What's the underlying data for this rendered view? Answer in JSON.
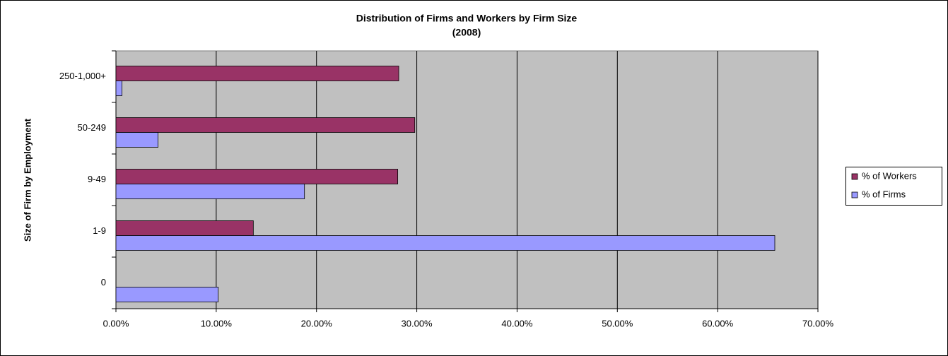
{
  "chart_data": {
    "type": "hbar",
    "title": "Distribution of Firms and Workers by Firm Size",
    "subtitle": "(2008)",
    "y_label": "Size of Firm by Employment",
    "categories": [
      "0",
      "1-9",
      "9-49",
      "50-249",
      "250-1,000+"
    ],
    "series": [
      {
        "name": "% of Workers",
        "color": "#993366",
        "values": [
          null,
          13.7,
          28.1,
          29.8,
          28.2
        ]
      },
      {
        "name": "% of Firms",
        "color": "#9999ff",
        "values": [
          10.2,
          65.7,
          18.8,
          4.2,
          0.6
        ]
      }
    ],
    "xlim": [
      0,
      70
    ],
    "xticks": [
      {
        "value": 0,
        "label": "0.00%"
      },
      {
        "value": 10,
        "label": "10.00%"
      },
      {
        "value": 20,
        "label": "20.00%"
      },
      {
        "value": 30,
        "label": "30.00%"
      },
      {
        "value": 40,
        "label": "40.00%"
      },
      {
        "value": 50,
        "label": "50.00%"
      },
      {
        "value": 60,
        "label": "60.00%"
      },
      {
        "value": 70,
        "label": "70.00%"
      }
    ],
    "grid": true,
    "legend": "right"
  }
}
